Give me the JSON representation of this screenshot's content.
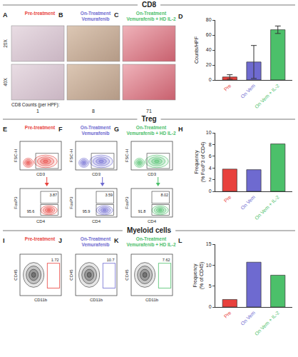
{
  "sections": [
    "CD8",
    "Treg",
    "Myeloid cells"
  ],
  "cd8": {
    "letters": [
      "A",
      "B",
      "C"
    ],
    "titles": [
      [
        "Pre-treatment"
      ],
      [
        "On-Treatment",
        "Vemurafenib"
      ],
      [
        "On-Treatment",
        "Vemurafenib + HD IL-2"
      ]
    ],
    "magnifications": [
      "20X",
      "40X"
    ],
    "counts_label": "CD8 Counts (per HPF):",
    "counts": [
      1,
      8,
      71
    ]
  },
  "treg": {
    "letters": [
      "E",
      "F",
      "G"
    ],
    "titles": [
      [
        "Pre-treatment"
      ],
      [
        "On-Treatment",
        "Vemurafenib"
      ],
      [
        "On-Treatment",
        "Vemurafenib + HD IL-2"
      ]
    ],
    "top_axes": {
      "x": "CD3",
      "y": "FSC-H"
    },
    "bottom_axes": {
      "x": "CD4",
      "y": "FoxP3"
    },
    "gates": [
      {
        "upper": 3.87,
        "lower": 95.6
      },
      {
        "upper": 3.59,
        "lower": 95.9
      },
      {
        "upper": 8.02,
        "lower": 91.8
      }
    ]
  },
  "myeloid": {
    "letters": [
      "I",
      "J",
      "K"
    ],
    "titles": [
      [
        "Pre-treatment"
      ],
      [
        "On-Treatment",
        "Vemurafenib"
      ],
      [
        "On-Treatment",
        "Vemurafenib + HD IL-2"
      ]
    ],
    "axes": {
      "x": "CD11b",
      "y": "CD45"
    },
    "gates": [
      1.72,
      10.7,
      7.62
    ]
  },
  "chart_data": [
    {
      "panel": "D",
      "type": "bar",
      "categories": [
        "Pre",
        "On Vem",
        "On Vem + IL-2"
      ],
      "values": [
        4,
        24,
        67
      ],
      "errors": [
        3,
        22,
        5
      ],
      "colors": [
        "#e8413c",
        "#6e6ad0",
        "#4cc06a"
      ],
      "y_label": [
        "Counts/HPF"
      ],
      "ylim": [
        0,
        80
      ],
      "yticks": [
        0,
        20,
        40,
        60,
        80
      ]
    },
    {
      "panel": "H",
      "type": "bar",
      "categories": [
        "Pre",
        "On Vem",
        "On Vem + IL-2"
      ],
      "values": [
        3.8,
        3.7,
        8.1
      ],
      "colors": [
        "#e8413c",
        "#6e6ad0",
        "#4cc06a"
      ],
      "y_label": [
        "Frequency",
        "(% FoxP3 of CD4)"
      ],
      "ylim": [
        0,
        10
      ],
      "yticks": [
        0,
        2,
        4,
        6,
        8,
        10
      ]
    },
    {
      "panel": "L",
      "type": "bar",
      "categories": [
        "Pre",
        "On Vem",
        "On Vem + IL-2"
      ],
      "values": [
        1.8,
        10.7,
        7.6
      ],
      "colors": [
        "#e8413c",
        "#6e6ad0",
        "#4cc06a"
      ],
      "y_label": [
        "Frequency",
        "(% of CD45)"
      ],
      "ylim": [
        0,
        15
      ],
      "yticks": [
        0,
        5,
        10,
        15
      ]
    }
  ]
}
